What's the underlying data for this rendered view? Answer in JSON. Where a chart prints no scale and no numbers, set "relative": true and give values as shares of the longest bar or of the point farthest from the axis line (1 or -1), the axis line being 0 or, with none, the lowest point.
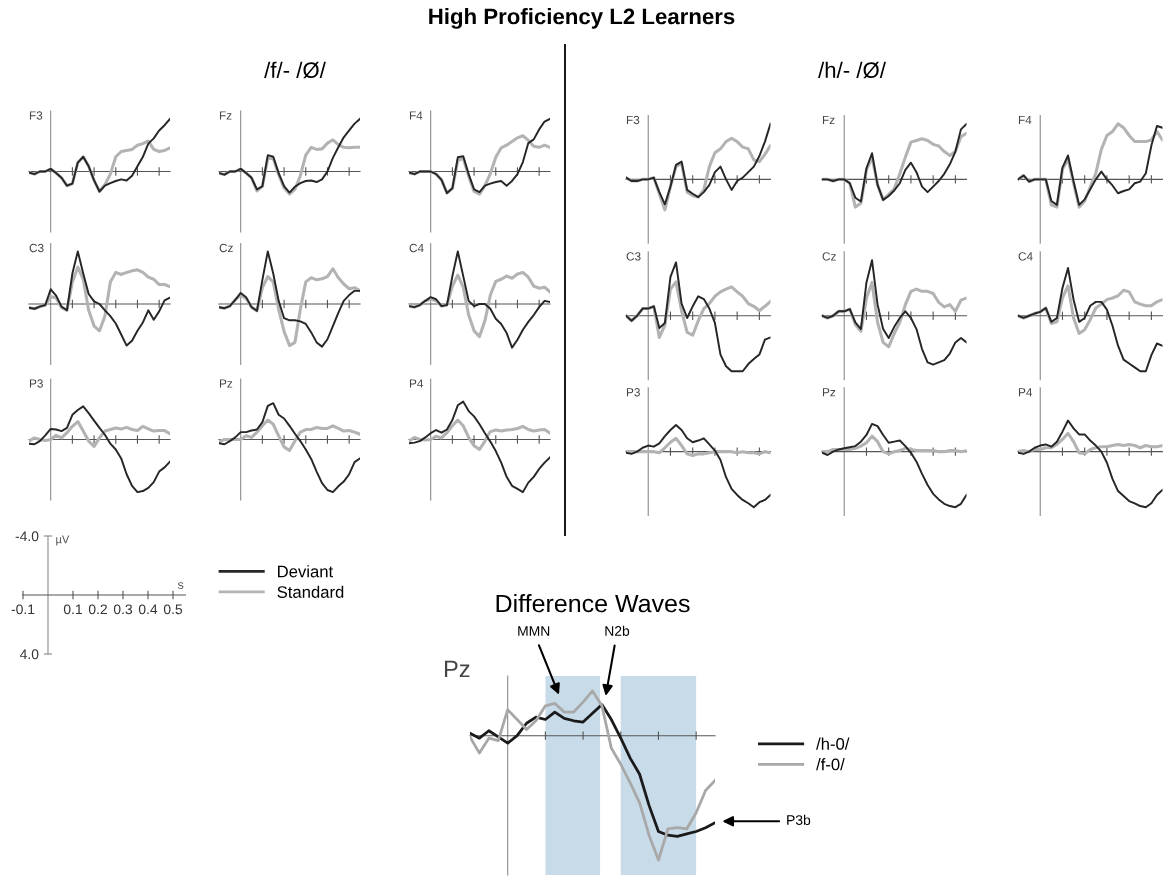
{
  "chart_data": [
    {
      "type": "line",
      "title": "F3",
      "annotations": [
        "High Proficiency L2 Learners",
        "/f/- /Ø/",
        "/h/- /Ø/"
      ],
      "relative": true,
      "categories": [
        null,
        null,
        null,
        null,
        null,
        null,
        null,
        null,
        null,
        null,
        null,
        null,
        null,
        null,
        null,
        null,
        null,
        null,
        null,
        null,
        null,
        null,
        null,
        null,
        null,
        null,
        null
      ],
      "series": [
        {
          "color": "#b3b3b3",
          "values": [
            -0.02,
            -0.05,
            0,
            0,
            0.05,
            -0.03,
            -0.12,
            -0.27,
            -0.23,
            0.17,
            0.28,
            0.1,
            -0.17,
            -0.38,
            -0.25,
            -0.05,
            0.28,
            0.38,
            0.4,
            0.42,
            0.5,
            0.53,
            0.58,
            0.42,
            0.38,
            0.4,
            0.45
          ]
        },
        {
          "color": "#262626",
          "values": [
            -0.02,
            -0.05,
            0,
            0,
            0.05,
            -0.03,
            -0.12,
            -0.27,
            -0.23,
            0.17,
            0.28,
            0.1,
            -0.17,
            -0.38,
            -0.27,
            -0.22,
            -0.18,
            -0.15,
            -0.17,
            -0.08,
            0.1,
            0.28,
            0.53,
            0.63,
            0.78,
            0.88,
            1
          ]
        }
      ]
    },
    {
      "type": "line",
      "title": "Fz",
      "relative": true,
      "categories": [
        null,
        null,
        null,
        null,
        null,
        null,
        null,
        null,
        null,
        null,
        null,
        null,
        null,
        null,
        null,
        null,
        null,
        null,
        null,
        null,
        null,
        null,
        null,
        null,
        null,
        null,
        null
      ],
      "series": [
        {
          "color": "#b3b3b3",
          "values": [
            -0.03,
            -0.06,
            0,
            0,
            0.05,
            -0.03,
            -0.12,
            -0.37,
            -0.28,
            0.25,
            0.25,
            -0.06,
            -0.31,
            -0.43,
            -0.34,
            -0.08,
            0.31,
            0.46,
            0.42,
            0.43,
            0.54,
            0.6,
            0.51,
            0.46,
            0.45,
            0.46,
            0.46
          ]
        },
        {
          "color": "#262626",
          "values": [
            -0.03,
            -0.06,
            0,
            0,
            0.05,
            -0.03,
            -0.12,
            -0.34,
            -0.28,
            0.31,
            0.28,
            -0.03,
            -0.28,
            -0.4,
            -0.29,
            -0.22,
            -0.18,
            -0.17,
            -0.2,
            -0.15,
            0,
            0.26,
            0.46,
            0.65,
            0.78,
            0.91,
            1
          ]
        }
      ]
    },
    {
      "type": "line",
      "title": "F4",
      "relative": true,
      "categories": [
        null,
        null,
        null,
        null,
        null,
        null,
        null,
        null,
        null,
        null,
        null,
        null,
        null,
        null,
        null,
        null,
        null,
        null,
        null,
        null,
        null,
        null,
        null,
        null,
        null,
        null,
        null
      ],
      "series": [
        {
          "color": "#b3b3b3",
          "values": [
            -0.02,
            -0.05,
            0,
            0,
            0,
            -0.05,
            -0.16,
            -0.41,
            -0.32,
            0.21,
            0.25,
            -0.09,
            -0.38,
            -0.43,
            -0.27,
            -0.04,
            0.27,
            0.45,
            0.5,
            0.57,
            0.64,
            0.68,
            0.59,
            0.48,
            0.46,
            0.5,
            0.46
          ]
        },
        {
          "color": "#262626",
          "values": [
            -0.02,
            -0.05,
            0,
            0,
            0,
            -0.05,
            -0.16,
            -0.41,
            -0.32,
            0.27,
            0.29,
            -0.05,
            -0.34,
            -0.39,
            -0.27,
            -0.23,
            -0.2,
            -0.18,
            -0.27,
            -0.18,
            -0.05,
            0.18,
            0.54,
            0.61,
            0.8,
            0.95,
            1
          ]
        }
      ]
    },
    {
      "type": "line",
      "title": "C3",
      "relative": true,
      "categories": [
        null,
        null,
        null,
        null,
        null,
        null,
        null,
        null,
        null,
        null,
        null,
        null,
        null,
        null,
        null,
        null,
        null,
        null,
        null,
        null,
        null,
        null,
        null,
        null,
        null,
        null,
        null
      ],
      "series": [
        {
          "color": "#b3b3b3",
          "values": [
            -0.07,
            -0.09,
            -0.05,
            -0.02,
            0.14,
            0.12,
            -0.07,
            -0.12,
            0.42,
            0.7,
            0.47,
            -0.12,
            -0.42,
            -0.51,
            -0.23,
            0.42,
            0.6,
            0.56,
            0.6,
            0.63,
            0.65,
            0.6,
            0.51,
            0.47,
            0.37,
            0.37,
            0.33
          ]
        },
        {
          "color": "#262626",
          "values": [
            -0.07,
            -0.09,
            -0.05,
            -0.02,
            0.28,
            0.16,
            -0.05,
            -0.12,
            0.58,
            1,
            0.58,
            0.19,
            0.05,
            0,
            -0.12,
            -0.23,
            -0.37,
            -0.58,
            -0.79,
            -0.7,
            -0.51,
            -0.35,
            -0.12,
            -0.3,
            -0.14,
            0.07,
            0.12
          ]
        }
      ]
    },
    {
      "type": "line",
      "title": "Cz",
      "relative": true,
      "categories": [
        null,
        null,
        null,
        null,
        null,
        null,
        null,
        null,
        null,
        null,
        null,
        null,
        null,
        null,
        null,
        null,
        null,
        null,
        null,
        null,
        null,
        null,
        null,
        null,
        null,
        null,
        null
      ],
      "series": [
        {
          "color": "#b3b3b3",
          "values": [
            -0.06,
            -0.08,
            -0.04,
            0.08,
            0.17,
            0.1,
            -0.06,
            -0.13,
            0.31,
            0.52,
            0.42,
            -0.1,
            -0.52,
            -0.79,
            -0.73,
            -0.1,
            0.42,
            0.5,
            0.46,
            0.48,
            0.52,
            0.67,
            0.5,
            0.38,
            0.29,
            0.31,
            0.25
          ]
        },
        {
          "color": "#262626",
          "values": [
            -0.06,
            -0.08,
            -0.04,
            0.08,
            0.21,
            0.13,
            -0.06,
            -0.13,
            0.46,
            1,
            0.58,
            0.06,
            -0.27,
            -0.31,
            -0.31,
            -0.33,
            -0.38,
            -0.54,
            -0.73,
            -0.81,
            -0.67,
            -0.42,
            -0.17,
            0.06,
            0.17,
            0.25,
            0.25
          ]
        }
      ]
    },
    {
      "type": "line",
      "title": "C4",
      "relative": true,
      "categories": [
        null,
        null,
        null,
        null,
        null,
        null,
        null,
        null,
        null,
        null,
        null,
        null,
        null,
        null,
        null,
        null,
        null,
        null,
        null,
        null,
        null,
        null,
        null,
        null,
        null,
        null,
        null
      ],
      "series": [
        {
          "color": "#b3b3b3",
          "values": [
            -0.04,
            -0.06,
            -0.02,
            0.06,
            0.09,
            0.06,
            -0.04,
            -0.02,
            0.34,
            0.55,
            0.32,
            -0.21,
            -0.51,
            -0.62,
            -0.32,
            0.17,
            0.43,
            0.47,
            0.53,
            0.49,
            0.57,
            0.6,
            0.51,
            0.34,
            0.3,
            0.32,
            0.23
          ]
        },
        {
          "color": "#262626",
          "values": [
            -0.04,
            -0.06,
            -0.02,
            0.06,
            0.13,
            0.09,
            -0.04,
            -0.02,
            0.53,
            1,
            0.53,
            0.06,
            -0.04,
            0,
            0,
            -0.09,
            -0.28,
            -0.38,
            -0.55,
            -0.83,
            -0.68,
            -0.49,
            -0.34,
            -0.21,
            -0.06,
            0.06,
            0.04
          ]
        }
      ]
    },
    {
      "type": "line",
      "title": "P3",
      "relative": true,
      "categories": [
        null,
        null,
        null,
        null,
        null,
        null,
        null,
        null,
        null,
        null,
        null,
        null,
        null,
        null,
        null,
        null,
        null,
        null,
        null,
        null,
        null,
        null,
        null,
        null,
        null,
        null,
        null
      ],
      "series": [
        {
          "color": "#b3b3b3",
          "values": [
            -0.03,
            0.03,
            0,
            -0.02,
            0,
            0.08,
            0.03,
            0.13,
            0.25,
            0.34,
            0.16,
            -0.03,
            -0.13,
            0.03,
            0.16,
            0.19,
            0.22,
            0.2,
            0.23,
            0.19,
            0.17,
            0.25,
            0.2,
            0.16,
            0.17,
            0.17,
            0.11
          ]
        },
        {
          "color": "#262626",
          "values": [
            -0.08,
            -0.09,
            -0.03,
            0.08,
            0.2,
            0.19,
            0.16,
            0.22,
            0.47,
            0.56,
            0.63,
            0.5,
            0.36,
            0.22,
            0.09,
            -0.08,
            -0.19,
            -0.36,
            -0.66,
            -0.88,
            -1,
            -0.98,
            -0.92,
            -0.81,
            -0.61,
            -0.53,
            -0.42
          ]
        }
      ]
    },
    {
      "type": "line",
      "title": "Pz",
      "relative": true,
      "categories": [
        null,
        null,
        null,
        null,
        null,
        null,
        null,
        null,
        null,
        null,
        null,
        null,
        null,
        null,
        null,
        null,
        null,
        null,
        null,
        null,
        null,
        null,
        null,
        null,
        null,
        null,
        null
      ],
      "series": [
        {
          "color": "#b3b3b3",
          "values": [
            -0.04,
            0,
            0,
            0,
            0,
            0.07,
            0.04,
            0.14,
            0.26,
            0.37,
            0.29,
            0.07,
            -0.14,
            -0.21,
            -0.03,
            0.14,
            0.19,
            0.19,
            0.23,
            0.21,
            0.21,
            0.26,
            0.21,
            0.16,
            0.17,
            0.14,
            0.1
          ]
        },
        {
          "color": "#262626",
          "values": [
            -0.07,
            -0.09,
            -0.03,
            0.04,
            0.14,
            0.14,
            0.17,
            0.19,
            0.33,
            0.64,
            0.69,
            0.47,
            0.4,
            0.26,
            0.11,
            -0.03,
            -0.19,
            -0.37,
            -0.61,
            -0.83,
            -0.96,
            -1,
            -0.89,
            -0.8,
            -0.66,
            -0.43,
            -0.36
          ]
        }
      ]
    },
    {
      "type": "line",
      "title": "P4",
      "relative": true,
      "categories": [
        null,
        null,
        null,
        null,
        null,
        null,
        null,
        null,
        null,
        null,
        null,
        null,
        null,
        null,
        null,
        null,
        null,
        null,
        null,
        null,
        null,
        null,
        null,
        null,
        null,
        null,
        null
      ],
      "series": [
        {
          "color": "#b3b3b3",
          "values": [
            -0.03,
            0.04,
            0,
            -0.01,
            0,
            0.06,
            0.03,
            0.13,
            0.26,
            0.37,
            0.26,
            0.04,
            -0.12,
            -0.19,
            -0.03,
            0.15,
            0.18,
            0.16,
            0.18,
            0.19,
            0.21,
            0.25,
            0.19,
            0.16,
            0.18,
            0.19,
            0.12
          ]
        },
        {
          "color": "#262626",
          "values": [
            -0.07,
            -0.06,
            -0.03,
            0.04,
            0.12,
            0.18,
            0.13,
            0.19,
            0.37,
            0.65,
            0.72,
            0.54,
            0.44,
            0.29,
            0.12,
            -0.04,
            -0.22,
            -0.44,
            -0.71,
            -0.88,
            -0.94,
            -1,
            -0.82,
            -0.71,
            -0.56,
            -0.44,
            -0.34
          ]
        }
      ]
    },
    {
      "type": "line",
      "title": "F3",
      "relative": true,
      "categories": [
        null,
        null,
        null,
        null,
        null,
        null,
        null,
        null,
        null,
        null,
        null,
        null,
        null,
        null,
        null,
        null,
        null,
        null,
        null,
        null,
        null,
        null,
        null,
        null,
        null,
        null,
        null
      ],
      "series": [
        {
          "color": "#b3b3b3",
          "values": [
            0.03,
            -0.03,
            -0.03,
            0,
            0,
            0.03,
            -0.26,
            -0.55,
            -0.13,
            0.23,
            0.29,
            -0.23,
            -0.29,
            -0.32,
            -0.19,
            0.23,
            0.48,
            0.55,
            0.68,
            0.74,
            0.68,
            0.58,
            0.55,
            0.35,
            0.32,
            0.45,
            0.61
          ]
        },
        {
          "color": "#262626",
          "values": [
            0.03,
            -0.03,
            -0.03,
            0,
            0,
            0.03,
            -0.23,
            -0.45,
            -0.13,
            0.26,
            0.32,
            -0.19,
            -0.26,
            -0.32,
            -0.23,
            -0.1,
            0.13,
            0.23,
            0,
            -0.19,
            -0.03,
            0.03,
            0.13,
            0.23,
            0.42,
            0.68,
            1
          ]
        }
      ]
    },
    {
      "type": "line",
      "title": "Fz",
      "relative": true,
      "categories": [
        null,
        null,
        null,
        null,
        null,
        null,
        null,
        null,
        null,
        null,
        null,
        null,
        null,
        null,
        null,
        null,
        null,
        null,
        null,
        null,
        null,
        null,
        null,
        null,
        null,
        null,
        null
      ],
      "series": [
        {
          "color": "#b3b3b3",
          "values": [
            0,
            0,
            -0.03,
            0,
            0,
            -0.07,
            -0.5,
            -0.43,
            0.17,
            0.4,
            -0.1,
            -0.37,
            -0.27,
            -0.17,
            0.1,
            0.4,
            0.67,
            0.7,
            0.73,
            0.7,
            0.63,
            0.6,
            0.5,
            0.43,
            0.5,
            0.77,
            0.83
          ]
        },
        {
          "color": "#262626",
          "values": [
            0,
            0,
            -0.03,
            0,
            0,
            -0.07,
            -0.33,
            -0.4,
            0.2,
            0.47,
            -0.1,
            -0.37,
            -0.3,
            -0.2,
            -0.07,
            0.17,
            0.3,
            0.13,
            -0.13,
            -0.23,
            -0.13,
            -0.03,
            0.1,
            0.27,
            0.5,
            0.9,
            1
          ]
        }
      ]
    },
    {
      "type": "line",
      "title": "F4",
      "relative": true,
      "categories": [
        null,
        null,
        null,
        null,
        null,
        null,
        null,
        null,
        null,
        null,
        null,
        null,
        null,
        null,
        null,
        null,
        null,
        null,
        null,
        null,
        null,
        null,
        null,
        null,
        null,
        null,
        null
      ],
      "series": [
        {
          "color": "#b3b3b3",
          "values": [
            0,
            0.07,
            -0.04,
            0,
            0,
            0,
            -0.46,
            -0.5,
            0.18,
            0.36,
            -0.07,
            -0.5,
            -0.39,
            -0.14,
            0.11,
            0.54,
            0.79,
            0.86,
            1,
            0.93,
            0.79,
            0.68,
            0.68,
            0.68,
            0.71,
            0.86,
            0.71
          ]
        },
        {
          "color": "#262626",
          "values": [
            0,
            0.07,
            -0.04,
            0,
            0,
            0,
            -0.39,
            -0.46,
            0.21,
            0.43,
            -0.04,
            -0.46,
            -0.36,
            -0.18,
            0,
            0.14,
            0,
            -0.11,
            -0.25,
            -0.21,
            -0.18,
            -0.07,
            -0.04,
            0.11,
            0.61,
            0.96,
            0.93
          ]
        }
      ]
    },
    {
      "type": "line",
      "title": "C3",
      "relative": true,
      "categories": [
        null,
        null,
        null,
        null,
        null,
        null,
        null,
        null,
        null,
        null,
        null,
        null,
        null,
        null,
        null,
        null,
        null,
        null,
        null,
        null,
        null,
        null,
        null,
        null,
        null,
        null,
        null
      ],
      "series": [
        {
          "color": "#b3b3b3",
          "values": [
            0,
            -0.09,
            0,
            0.13,
            0.13,
            0.17,
            -0.39,
            -0.17,
            0.48,
            0.61,
            0.09,
            -0.3,
            -0.35,
            -0.09,
            0.13,
            0.22,
            0.35,
            0.43,
            0.48,
            0.52,
            0.43,
            0.35,
            0.22,
            0.17,
            0.09,
            0.17,
            0.26
          ]
        },
        {
          "color": "#262626",
          "values": [
            0,
            -0.09,
            0,
            0.13,
            0.13,
            0.17,
            -0.22,
            -0.13,
            0.7,
            0.96,
            0.22,
            -0.04,
            0.17,
            0.35,
            0.3,
            0.13,
            -0.13,
            -0.7,
            -0.91,
            -1,
            -1,
            -1,
            -0.87,
            -0.78,
            -0.7,
            -0.43,
            -0.39
          ]
        }
      ]
    },
    {
      "type": "line",
      "title": "Cz",
      "relative": true,
      "categories": [
        null,
        null,
        null,
        null,
        null,
        null,
        null,
        null,
        null,
        null,
        null,
        null,
        null,
        null,
        null,
        null,
        null,
        null,
        null,
        null,
        null,
        null,
        null,
        null,
        null,
        null,
        null
      ],
      "series": [
        {
          "color": "#b3b3b3",
          "values": [
            0,
            -0.04,
            0,
            0.08,
            0.08,
            0.12,
            -0.16,
            -0.28,
            0.32,
            0.6,
            -0.12,
            -0.48,
            -0.56,
            -0.32,
            -0.12,
            0.2,
            0.44,
            0.48,
            0.44,
            0.44,
            0.4,
            0.24,
            0.16,
            0.2,
            0.08,
            0.28,
            0.32
          ]
        },
        {
          "color": "#262626",
          "values": [
            0,
            -0.04,
            0,
            0.08,
            0.08,
            0.12,
            -0.12,
            -0.24,
            0.6,
            1,
            0.2,
            -0.24,
            -0.4,
            -0.2,
            -0.04,
            0.08,
            -0.04,
            -0.24,
            -0.6,
            -0.84,
            -0.88,
            -0.84,
            -0.8,
            -0.68,
            -0.48,
            -0.4,
            -0.48
          ]
        }
      ]
    },
    {
      "type": "line",
      "title": "C4",
      "relative": true,
      "categories": [
        null,
        null,
        null,
        null,
        null,
        null,
        null,
        null,
        null,
        null,
        null,
        null,
        null,
        null,
        null,
        null,
        null,
        null,
        null,
        null,
        null,
        null,
        null,
        null,
        null,
        null,
        null
      ],
      "series": [
        {
          "color": "#b3b3b3",
          "values": [
            0,
            -0.04,
            0,
            0.04,
            0.07,
            0.14,
            -0.14,
            -0.11,
            0.32,
            0.54,
            -0.04,
            -0.32,
            -0.25,
            -0.07,
            0.14,
            0.21,
            0.29,
            0.32,
            0.36,
            0.46,
            0.43,
            0.25,
            0.21,
            0.18,
            0.18,
            0.25,
            0.29
          ]
        },
        {
          "color": "#262626",
          "values": [
            0,
            -0.04,
            0,
            0.04,
            0.07,
            0.14,
            -0.11,
            -0.04,
            0.5,
            0.86,
            0.29,
            -0.11,
            -0.04,
            0.18,
            0.25,
            0.25,
            0.11,
            -0.18,
            -0.54,
            -0.79,
            -0.86,
            -0.93,
            -1,
            -1,
            -0.71,
            -0.5,
            -0.54
          ]
        }
      ]
    },
    {
      "type": "line",
      "title": "P3",
      "relative": true,
      "categories": [
        null,
        null,
        null,
        null,
        null,
        null,
        null,
        null,
        null,
        null,
        null,
        null,
        null,
        null,
        null,
        null,
        null,
        null,
        null,
        null,
        null,
        null,
        null,
        null,
        null,
        null,
        null
      ],
      "series": [
        {
          "color": "#b3b3b3",
          "values": [
            0,
            0,
            0,
            0,
            0,
            0,
            -0.02,
            0.07,
            0.17,
            0.24,
            0.11,
            -0.04,
            -0.07,
            -0.04,
            -0.04,
            -0.02,
            0,
            0,
            0,
            0,
            -0.02,
            0,
            -0.02,
            -0.02,
            -0.04,
            0,
            -0.02
          ]
        },
        {
          "color": "#262626",
          "values": [
            -0.02,
            -0.04,
            0,
            0.07,
            0.11,
            0.09,
            0.15,
            0.28,
            0.39,
            0.48,
            0.39,
            0.24,
            0.17,
            0.2,
            0.24,
            0.13,
            0.02,
            -0.15,
            -0.46,
            -0.67,
            -0.78,
            -0.87,
            -0.93,
            -1,
            -0.91,
            -0.87,
            -0.78
          ]
        }
      ]
    },
    {
      "type": "line",
      "title": "Pz",
      "relative": true,
      "categories": [
        null,
        null,
        null,
        null,
        null,
        null,
        null,
        null,
        null,
        null,
        null,
        null,
        null,
        null,
        null,
        null,
        null,
        null,
        null,
        null,
        null,
        null,
        null,
        null,
        null,
        null,
        null
      ],
      "series": [
        {
          "color": "#b3b3b3",
          "values": [
            0,
            0,
            0.04,
            0.04,
            0.04,
            0.04,
            0.06,
            0.1,
            0.16,
            0.28,
            0.18,
            0,
            -0.04,
            0,
            0.02,
            0.06,
            0.04,
            0.02,
            0.02,
            0.02,
            0.02,
            0,
            0,
            0.02,
            0.02,
            0,
            0.02
          ]
        },
        {
          "color": "#262626",
          "values": [
            -0.02,
            -0.06,
            0,
            0.04,
            0.06,
            0.08,
            0.1,
            0.18,
            0.3,
            0.5,
            0.46,
            0.3,
            0.16,
            0.18,
            0.2,
            0.1,
            -0.02,
            -0.18,
            -0.4,
            -0.6,
            -0.76,
            -0.86,
            -0.94,
            -0.98,
            -1,
            -0.94,
            -0.78
          ]
        }
      ]
    },
    {
      "type": "line",
      "title": "P4",
      "relative": true,
      "categories": [
        null,
        null,
        null,
        null,
        null,
        null,
        null,
        null,
        null,
        null,
        null,
        null,
        null,
        null,
        null,
        null,
        null,
        null,
        null,
        null,
        null,
        null,
        null,
        null,
        null,
        null,
        null
      ],
      "series": [
        {
          "color": "#b3b3b3",
          "values": [
            0,
            0.02,
            0,
            0.04,
            0.04,
            0.07,
            0.07,
            0.13,
            0.22,
            0.33,
            0.18,
            -0.02,
            -0.04,
            0.04,
            0.07,
            0.09,
            0.09,
            0.11,
            0.13,
            0.11,
            0.13,
            0.11,
            0.07,
            0.11,
            0.09,
            0.09,
            0.11
          ]
        },
        {
          "color": "#262626",
          "values": [
            -0.02,
            -0.04,
            0,
            0.07,
            0.11,
            0.13,
            0.09,
            0.18,
            0.36,
            0.56,
            0.42,
            0.31,
            0.31,
            0.2,
            0.11,
            0,
            -0.2,
            -0.49,
            -0.71,
            -0.8,
            -0.89,
            -0.93,
            -0.98,
            -1,
            -0.93,
            -0.78,
            -0.69
          ]
        }
      ]
    },
    {
      "type": "other",
      "xlabel": "s",
      "ylabel": "µV",
      "annotations": [
        "-4.0",
        "4.0",
        "-0.1",
        "0.1",
        "0.2",
        "0.3",
        "0.4",
        "0.5"
      ],
      "legend": "right",
      "series": [
        {
          "name": "Deviant",
          "color": "#262626"
        },
        {
          "name": "Standard",
          "color": "#b3b3b3"
        }
      ]
    },
    {
      "type": "line",
      "title": "Difference Waves",
      "ylabel": "Pz",
      "relative": true,
      "categories": [
        null,
        null,
        null,
        null,
        null,
        null,
        null,
        null,
        null,
        null,
        null,
        null,
        null,
        null,
        null,
        null,
        null,
        null,
        null,
        null,
        null,
        null,
        null,
        null,
        null,
        null,
        null
      ],
      "legend": "right",
      "annotations": [
        "MMN",
        "N2b",
        "P3b"
      ],
      "series": [
        {
          "name": "/h-0/",
          "color": "#1a1a1a",
          "values": [
            0.02,
            -0.02,
            0.04,
            -0.01,
            -0.06,
            0,
            0.1,
            0.15,
            0.13,
            0.19,
            0.14,
            0.12,
            0.11,
            0.18,
            0.25,
            0.13,
            -0.02,
            -0.18,
            -0.31,
            -0.56,
            -0.77,
            -0.8,
            -0.81,
            -0.79,
            -0.77,
            -0.74,
            -0.7
          ]
        },
        {
          "name": "/f-0/",
          "color": "#a8a8a8",
          "values": [
            -0.01,
            -0.14,
            -0.02,
            -0.04,
            0.21,
            0.13,
            0.05,
            0.12,
            0.24,
            0.26,
            0.19,
            0.19,
            0.27,
            0.36,
            0.24,
            -0.1,
            -0.23,
            -0.38,
            -0.54,
            -0.8,
            -1,
            -0.75,
            -0.74,
            -0.75,
            -0.62,
            -0.44,
            -0.36
          ]
        }
      ]
    }
  ]
}
